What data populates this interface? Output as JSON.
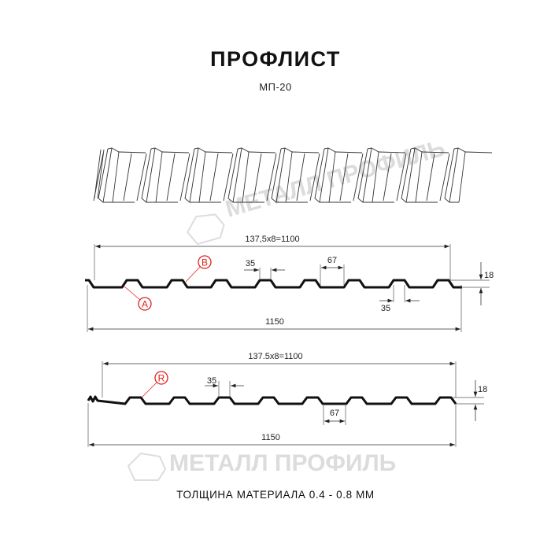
{
  "header": {
    "title": "ПРОФЛИСТ",
    "subtitle": "МП-20"
  },
  "watermark": {
    "text": "МЕТАЛЛ ПРОФИЛЬ"
  },
  "profile_a_b": {
    "pitch_dim": "137,5x8=1100",
    "width_dim": "1150",
    "crest_dim": "35",
    "valley_dim": "35",
    "rib_dim": "67",
    "height_dim": "18",
    "label_a": "A",
    "label_b": "B"
  },
  "profile_r": {
    "pitch_dim": "137.5x8=1100",
    "width_dim": "1150",
    "crest_dim": "35",
    "rib_dim": "67",
    "height_dim": "18",
    "label_r": "R"
  },
  "footer": {
    "thickness": "ТОЛЩИНА МАТЕРИАЛА 0.4 - 0.8 ММ"
  },
  "colors": {
    "label": "#e0201b",
    "line": "#111111",
    "watermark": "#d9d9d9"
  }
}
